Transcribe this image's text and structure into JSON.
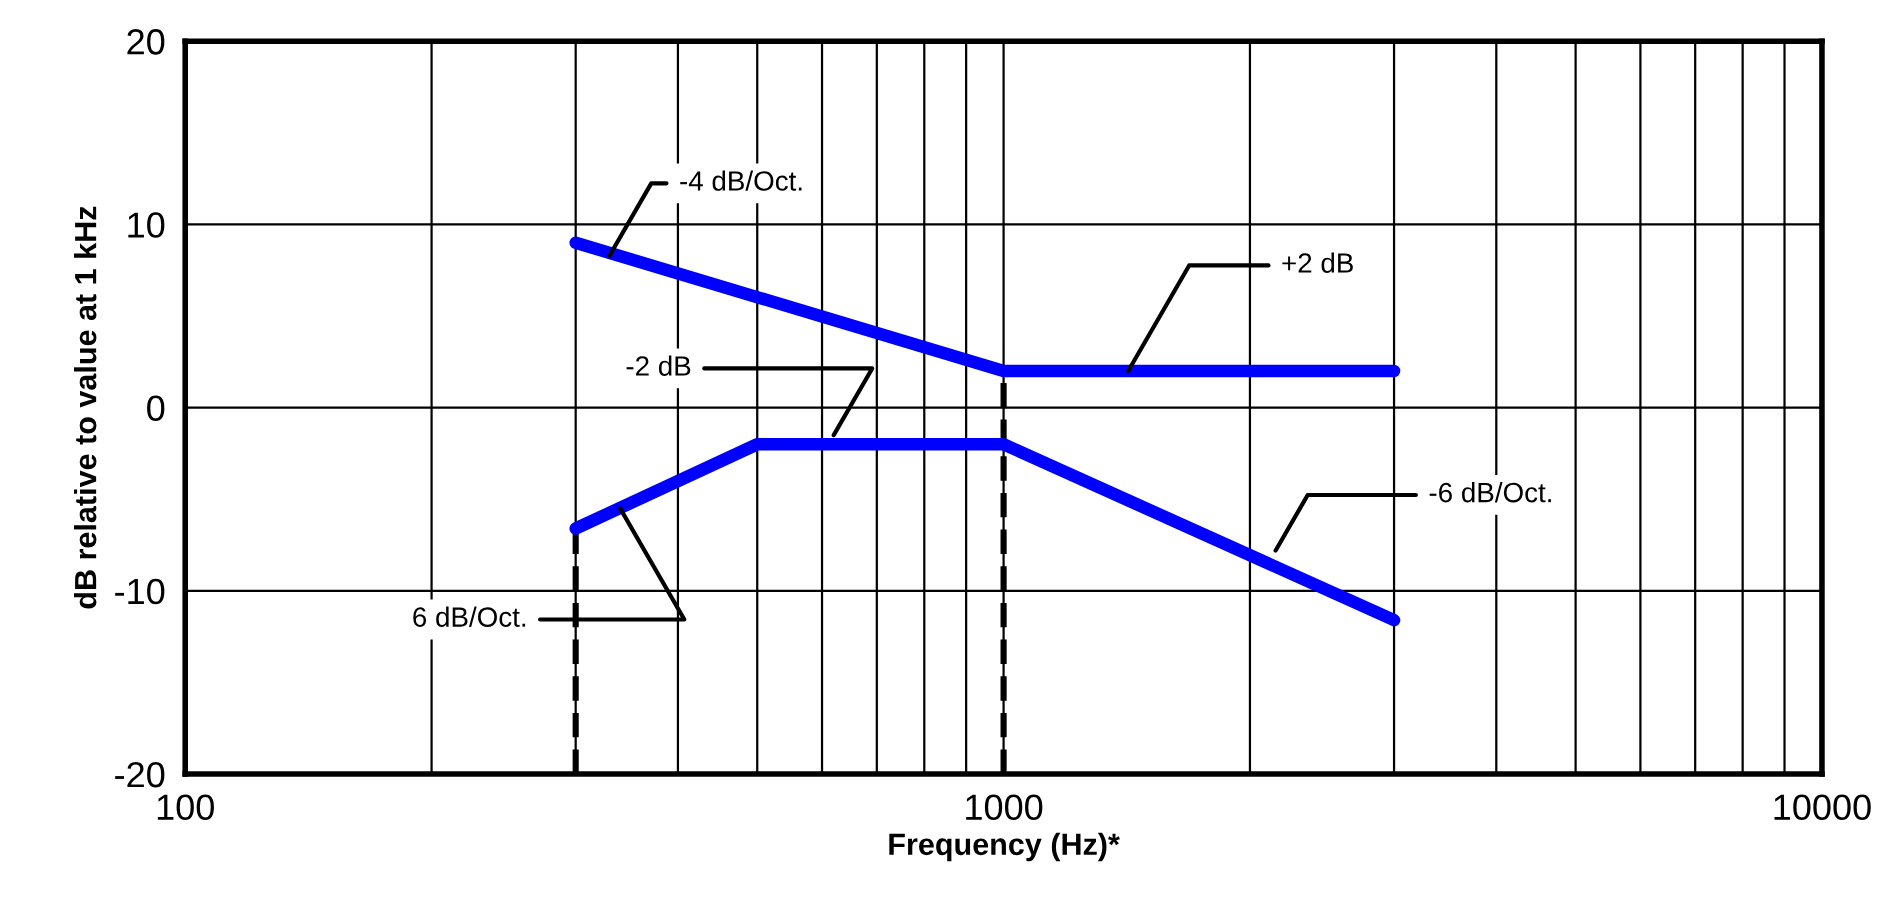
{
  "chart_data": {
    "type": "line",
    "xlabel": "Frequency (Hz)*",
    "ylabel": "dB relative to value at 1 kHz",
    "xlim": [
      100,
      10000
    ],
    "xticks": [
      100,
      1000,
      10000
    ],
    "log": "x",
    "ylim": [
      -20,
      20
    ],
    "yticks": [
      -20,
      -10,
      0,
      10,
      20
    ],
    "grid": true,
    "legend": false,
    "marker": "none",
    "series": [
      {
        "color": "#0000ff",
        "x": [
          300,
          1000,
          3000
        ],
        "values": [
          9,
          2,
          2
        ],
        "line_style": "solid"
      },
      {
        "color": "#0000ff",
        "x": [
          300,
          500,
          1000,
          3000
        ],
        "values": [
          -6.6,
          -2,
          -2,
          -11.6
        ],
        "line_style": "solid"
      },
      {
        "color": "#000000",
        "x": [
          300,
          300
        ],
        "values": [
          -20,
          -6.6
        ],
        "line_style": "dashed"
      },
      {
        "color": "#000000",
        "x": [
          1000,
          1000
        ],
        "values": [
          -20,
          2
        ],
        "line_style": "dashed"
      }
    ],
    "annotations": [
      {
        "text": "-4 dB/Oct.",
        "x": 330,
        "y": 8.3
      },
      {
        "text": "+2 dB",
        "x": 1420,
        "y": 2
      },
      {
        "text": "-2 dB",
        "x": 620,
        "y": -1.5
      },
      {
        "text": "-6 dB/Oct.",
        "x": 2150,
        "y": -7.8
      },
      {
        "text": "6 dB/Oct.",
        "x": 340,
        "y": -5.5
      }
    ]
  }
}
